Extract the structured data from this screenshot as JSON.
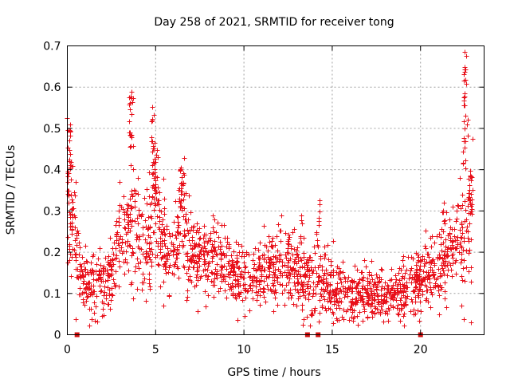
{
  "chart_data": {
    "type": "scatter",
    "title": "Day 258 of 2021, SRMTID for receiver tong",
    "xlabel": "GPS time / hours",
    "ylabel": "SRMTID / TECUs",
    "xlim": [
      0,
      23.6
    ],
    "ylim": [
      0,
      0.7
    ],
    "xticks": [
      0,
      5,
      10,
      15,
      20
    ],
    "xtick_labels": [
      "0",
      "5",
      "10",
      "15",
      "20"
    ],
    "yticks": [
      0,
      0.1,
      0.2,
      0.3,
      0.4,
      0.5,
      0.6,
      0.7
    ],
    "ytick_labels": [
      "0",
      "0.1",
      "0.2",
      "0.3",
      "0.4",
      "0.5",
      "0.6",
      "0.7"
    ],
    "grid": true,
    "marker": "+",
    "color": "#e8101a",
    "flag_color": "#d01010",
    "zero_flags_x": [
      0.55,
      13.6,
      14.2,
      20.0
    ],
    "profile": [
      [
        0.0,
        0.2,
        0.09
      ],
      [
        0.3,
        0.3,
        0.12
      ],
      [
        0.6,
        0.18,
        0.06
      ],
      [
        1.0,
        0.13,
        0.05
      ],
      [
        1.4,
        0.12,
        0.05
      ],
      [
        2.0,
        0.11,
        0.05
      ],
      [
        2.5,
        0.14,
        0.06
      ],
      [
        3.0,
        0.24,
        0.07
      ],
      [
        3.5,
        0.26,
        0.08
      ],
      [
        4.0,
        0.25,
        0.08
      ],
      [
        4.5,
        0.22,
        0.09
      ],
      [
        5.0,
        0.3,
        0.13
      ],
      [
        5.5,
        0.18,
        0.07
      ],
      [
        6.0,
        0.22,
        0.07
      ],
      [
        6.5,
        0.28,
        0.09
      ],
      [
        7.0,
        0.21,
        0.07
      ],
      [
        7.5,
        0.19,
        0.06
      ],
      [
        8.0,
        0.19,
        0.06
      ],
      [
        8.5,
        0.18,
        0.06
      ],
      [
        9.0,
        0.17,
        0.05
      ],
      [
        9.5,
        0.14,
        0.05
      ],
      [
        10.0,
        0.13,
        0.05
      ],
      [
        10.5,
        0.14,
        0.05
      ],
      [
        11.0,
        0.15,
        0.05
      ],
      [
        11.5,
        0.16,
        0.05
      ],
      [
        12.0,
        0.17,
        0.06
      ],
      [
        12.5,
        0.16,
        0.06
      ],
      [
        13.0,
        0.15,
        0.06
      ],
      [
        13.5,
        0.13,
        0.06
      ],
      [
        14.0,
        0.12,
        0.06
      ],
      [
        14.5,
        0.13,
        0.06
      ],
      [
        15.0,
        0.11,
        0.05
      ],
      [
        15.5,
        0.1,
        0.05
      ],
      [
        16.0,
        0.09,
        0.04
      ],
      [
        16.5,
        0.09,
        0.04
      ],
      [
        17.0,
        0.1,
        0.04
      ],
      [
        17.5,
        0.09,
        0.04
      ],
      [
        18.0,
        0.09,
        0.04
      ],
      [
        18.5,
        0.1,
        0.04
      ],
      [
        19.0,
        0.11,
        0.05
      ],
      [
        19.5,
        0.12,
        0.05
      ],
      [
        20.0,
        0.13,
        0.05
      ],
      [
        20.5,
        0.15,
        0.05
      ],
      [
        21.0,
        0.16,
        0.06
      ],
      [
        21.5,
        0.19,
        0.07
      ],
      [
        22.0,
        0.22,
        0.08
      ],
      [
        22.5,
        0.25,
        0.1
      ],
      [
        22.9,
        0.3,
        0.12
      ]
    ],
    "spikes": [
      [
        0.1,
        0.0,
        0.33,
        0.53,
        24
      ],
      [
        0.35,
        0.0,
        0.18,
        0.34,
        10
      ],
      [
        3.6,
        0.0,
        0.4,
        0.61,
        22
      ],
      [
        4.9,
        0.0,
        0.3,
        0.56,
        34
      ],
      [
        6.5,
        0.0,
        0.3,
        0.44,
        18
      ],
      [
        22.55,
        0.0,
        0.4,
        0.69,
        30
      ],
      [
        22.8,
        0.0,
        0.3,
        0.42,
        12
      ],
      [
        14.2,
        0.0,
        0.2,
        0.33,
        10
      ],
      [
        13.3,
        0.0,
        0.18,
        0.29,
        8
      ],
      [
        21.3,
        0.0,
        0.22,
        0.32,
        8
      ]
    ],
    "n_background_points": 1900,
    "seed": 25821
  }
}
